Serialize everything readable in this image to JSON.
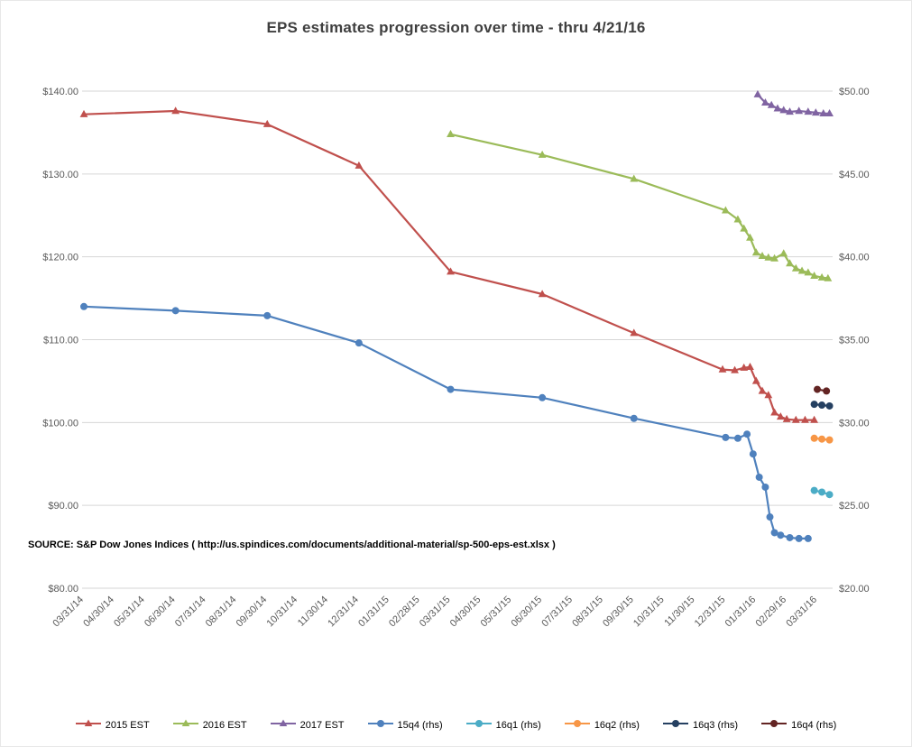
{
  "chart_data": {
    "type": "line",
    "title": "EPS estimates progression over time - thru 4/21/16",
    "x_tick_labels": [
      "03/31/14",
      "04/30/14",
      "05/31/14",
      "06/30/14",
      "07/31/14",
      "08/31/14",
      "09/30/14",
      "10/31/14",
      "11/30/14",
      "12/31/14",
      "01/31/15",
      "02/28/15",
      "03/31/15",
      "04/30/15",
      "05/31/15",
      "06/30/15",
      "07/31/15",
      "08/31/15",
      "09/30/15",
      "10/31/15",
      "11/30/15",
      "12/31/15",
      "01/31/16",
      "02/29/16",
      "03/31/16"
    ],
    "x_unit": "one unit per monthly tick, 0 = 03/31/14",
    "left_axis": {
      "min": 80,
      "max": 140,
      "step": 10,
      "tick_labels": [
        "$80.00",
        "$90.00",
        "$100.00",
        "$110.00",
        "$120.00",
        "$130.00",
        "$140.00"
      ]
    },
    "right_axis": {
      "min": 20,
      "max": 50,
      "step": 5,
      "tick_labels": [
        "$20.00",
        "$25.00",
        "$30.00",
        "$35.00",
        "$40.00",
        "$45.00",
        "$50.00"
      ]
    },
    "grid": "horizontal-only",
    "legend_position": "bottom",
    "series": [
      {
        "name": "2015 EST",
        "color": "#C0504D",
        "marker": "triangle",
        "axis": "left",
        "points": [
          [
            0,
            137.2
          ],
          [
            3,
            137.6
          ],
          [
            6,
            136.0
          ],
          [
            9,
            131.0
          ],
          [
            12,
            118.2
          ],
          [
            15,
            115.5
          ],
          [
            18,
            110.8
          ],
          [
            20.9,
            106.4
          ],
          [
            21.3,
            106.3
          ],
          [
            21.6,
            106.6
          ],
          [
            21.8,
            106.7
          ],
          [
            22.0,
            105.0
          ],
          [
            22.2,
            103.8
          ],
          [
            22.4,
            103.3
          ],
          [
            22.6,
            101.2
          ],
          [
            22.8,
            100.7
          ],
          [
            23.0,
            100.4
          ],
          [
            23.3,
            100.3
          ],
          [
            23.6,
            100.3
          ],
          [
            23.9,
            100.3
          ]
        ]
      },
      {
        "name": "2016 EST",
        "color": "#9BBB59",
        "marker": "triangle",
        "axis": "left",
        "points": [
          [
            12,
            134.8
          ],
          [
            15,
            132.3
          ],
          [
            18,
            129.4
          ],
          [
            21,
            125.6
          ],
          [
            21.4,
            124.5
          ],
          [
            21.6,
            123.4
          ],
          [
            21.8,
            122.3
          ],
          [
            22.0,
            120.5
          ],
          [
            22.2,
            120.1
          ],
          [
            22.4,
            119.9
          ],
          [
            22.6,
            119.8
          ],
          [
            22.9,
            120.4
          ],
          [
            23.1,
            119.2
          ],
          [
            23.3,
            118.6
          ],
          [
            23.5,
            118.3
          ],
          [
            23.7,
            118.1
          ],
          [
            23.9,
            117.7
          ],
          [
            24.15,
            117.5
          ],
          [
            24.35,
            117.4
          ]
        ]
      },
      {
        "name": "2017 EST",
        "color": "#8064A2",
        "marker": "triangle",
        "axis": "left",
        "points": [
          [
            22.05,
            139.6
          ],
          [
            22.3,
            138.6
          ],
          [
            22.5,
            138.3
          ],
          [
            22.7,
            137.9
          ],
          [
            22.9,
            137.7
          ],
          [
            23.1,
            137.5
          ],
          [
            23.4,
            137.6
          ],
          [
            23.7,
            137.5
          ],
          [
            23.95,
            137.4
          ],
          [
            24.2,
            137.3
          ],
          [
            24.4,
            137.3
          ]
        ]
      },
      {
        "name": "15q4 (rhs)",
        "color": "#4F81BD",
        "marker": "circle",
        "axis": "right",
        "points": [
          [
            0,
            37.0
          ],
          [
            3,
            36.75
          ],
          [
            6,
            36.45
          ],
          [
            9,
            34.8
          ],
          [
            12,
            32.0
          ],
          [
            15,
            31.5
          ],
          [
            18,
            30.25
          ],
          [
            21,
            29.1
          ],
          [
            21.4,
            29.05
          ],
          [
            21.7,
            29.3
          ],
          [
            21.9,
            28.1
          ],
          [
            22.1,
            26.7
          ],
          [
            22.3,
            26.1
          ],
          [
            22.45,
            24.3
          ],
          [
            22.6,
            23.35
          ],
          [
            22.8,
            23.2
          ],
          [
            23.1,
            23.05
          ],
          [
            23.4,
            23.0
          ],
          [
            23.7,
            23.0
          ]
        ]
      },
      {
        "name": "16q1 (rhs)",
        "color": "#4BACC6",
        "marker": "circle",
        "axis": "right",
        "points": [
          [
            23.9,
            25.9
          ],
          [
            24.15,
            25.8
          ],
          [
            24.4,
            25.65
          ]
        ]
      },
      {
        "name": "16q2 (rhs)",
        "color": "#F79646",
        "marker": "circle",
        "axis": "right",
        "points": [
          [
            23.9,
            29.05
          ],
          [
            24.15,
            29.0
          ],
          [
            24.4,
            28.95
          ]
        ]
      },
      {
        "name": "16q3 (rhs)",
        "color": "#254061",
        "marker": "circle",
        "axis": "right",
        "points": [
          [
            23.9,
            31.1
          ],
          [
            24.15,
            31.05
          ],
          [
            24.4,
            31.0
          ]
        ]
      },
      {
        "name": "16q4 (rhs)",
        "color": "#632423",
        "marker": "circle",
        "axis": "right",
        "points": [
          [
            24.0,
            32.0
          ],
          [
            24.3,
            31.9
          ]
        ]
      }
    ]
  },
  "source_note": "SOURCE: S&P Dow Jones Indices ( http://us.spindices.com/documents/additional-material/sp-500-eps-est.xlsx )"
}
